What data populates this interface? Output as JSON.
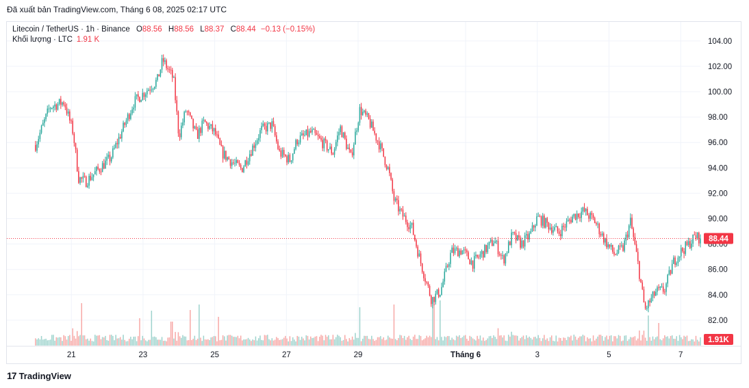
{
  "header": {
    "published": "Đã xuất bản TradingView.com, Tháng 6 08, 2025 02:17 UTC"
  },
  "legend": {
    "symbol": "Litecoin / TetherUS · 1h · Binance",
    "o_label": "O",
    "o": "88.56",
    "h_label": "H",
    "h": "88.56",
    "l_label": "L",
    "l": "88.37",
    "c_label": "C",
    "c": "88.44",
    "change": "−0.13 (−0.15%)",
    "volume_label": "Khối lượng · LTC",
    "volume": "1.91 K"
  },
  "colors": {
    "up": "#26a69a",
    "down": "#f23645",
    "vol_up": "#9ed3cd",
    "vol_down": "#f7a9a7",
    "grid": "#f0f3fa"
  },
  "brand": {
    "logo": "17",
    "name": "TradingView"
  },
  "chart_data": {
    "type": "candlestick",
    "title": "Litecoin / TetherUS · 1h · Binance",
    "y_ticks": [
      "104.00",
      "102.00",
      "100.00",
      "98.00",
      "96.00",
      "94.00",
      "92.00",
      "90.00",
      "88.00",
      "86.00",
      "84.00",
      "82.00"
    ],
    "ylim": [
      80.0,
      105.5
    ],
    "x_ticks": [
      {
        "label": "21",
        "day": 1
      },
      {
        "label": "23",
        "day": 3
      },
      {
        "label": "25",
        "day": 5
      },
      {
        "label": "27",
        "day": 7
      },
      {
        "label": "29",
        "day": 9
      },
      {
        "label": "Tháng 6",
        "day": 12
      },
      {
        "label": "3",
        "day": 14
      },
      {
        "label": "5",
        "day": 16
      },
      {
        "label": "7",
        "day": 18
      }
    ],
    "x_range_days": [
      -0.8,
      18.55
    ],
    "last_price": "88.44",
    "last_price_value": 88.44,
    "last_volume": "1.91K",
    "anchors": [
      [
        0,
        95.8
      ],
      [
        0.4,
        98.8
      ],
      [
        0.8,
        99.2
      ],
      [
        1.05,
        96.8
      ],
      [
        1.2,
        93.2
      ],
      [
        1.4,
        92.9
      ],
      [
        1.8,
        94.0
      ],
      [
        2.1,
        94.8
      ],
      [
        2.5,
        97.5
      ],
      [
        2.75,
        99.2
      ],
      [
        3.1,
        100.1
      ],
      [
        3.4,
        100.9
      ],
      [
        3.55,
        102.5
      ],
      [
        3.85,
        101.0
      ],
      [
        4.0,
        96.5
      ],
      [
        4.2,
        98.6
      ],
      [
        4.5,
        96.5
      ],
      [
        4.7,
        97.6
      ],
      [
        5.0,
        96.8
      ],
      [
        5.2,
        95.2
      ],
      [
        5.5,
        94.4
      ],
      [
        5.75,
        93.9
      ],
      [
        6.0,
        95.3
      ],
      [
        6.3,
        97.0
      ],
      [
        6.6,
        97.4
      ],
      [
        6.8,
        95.2
      ],
      [
        7.1,
        94.6
      ],
      [
        7.3,
        96.2
      ],
      [
        7.7,
        96.8
      ],
      [
        8.0,
        96.0
      ],
      [
        8.3,
        95.2
      ],
      [
        8.5,
        97.2
      ],
      [
        8.8,
        94.8
      ],
      [
        9.05,
        98.6
      ],
      [
        9.3,
        97.7
      ],
      [
        9.6,
        95.8
      ],
      [
        9.85,
        93.8
      ],
      [
        10.0,
        91.5
      ],
      [
        10.2,
        90.4
      ],
      [
        10.5,
        89.3
      ],
      [
        10.75,
        86.5
      ],
      [
        11.05,
        83.6
      ],
      [
        11.3,
        84.3
      ],
      [
        11.6,
        87.4
      ],
      [
        11.9,
        87.5
      ],
      [
        12.2,
        86.5
      ],
      [
        12.5,
        87.4
      ],
      [
        12.8,
        88.3
      ],
      [
        13.05,
        86.7
      ],
      [
        13.3,
        88.7
      ],
      [
        13.55,
        88.0
      ],
      [
        13.8,
        88.7
      ],
      [
        14.0,
        90.1
      ],
      [
        14.3,
        89.5
      ],
      [
        14.6,
        88.9
      ],
      [
        15.0,
        90.2
      ],
      [
        15.3,
        90.6
      ],
      [
        15.6,
        89.8
      ],
      [
        15.9,
        88.2
      ],
      [
        16.15,
        87.2
      ],
      [
        16.4,
        87.7
      ],
      [
        16.6,
        89.8
      ],
      [
        16.8,
        86.6
      ],
      [
        17.0,
        82.8
      ],
      [
        17.3,
        84.2
      ],
      [
        17.55,
        84.4
      ],
      [
        17.8,
        86.6
      ],
      [
        18.0,
        87.4
      ],
      [
        18.2,
        87.9
      ],
      [
        18.4,
        88.6
      ],
      [
        18.55,
        88.44
      ]
    ],
    "volume_spikes": [
      [
        1.3,
        62
      ],
      [
        3.25,
        51
      ],
      [
        4.3,
        52
      ],
      [
        4.55,
        60
      ],
      [
        5.1,
        42
      ],
      [
        9.05,
        44
      ],
      [
        10.0,
        60
      ],
      [
        11.1,
        60
      ],
      [
        11.3,
        66
      ],
      [
        17.1,
        44
      ],
      [
        17.4,
        33
      ],
      [
        3.8,
        35
      ],
      [
        2.9,
        40
      ]
    ]
  }
}
